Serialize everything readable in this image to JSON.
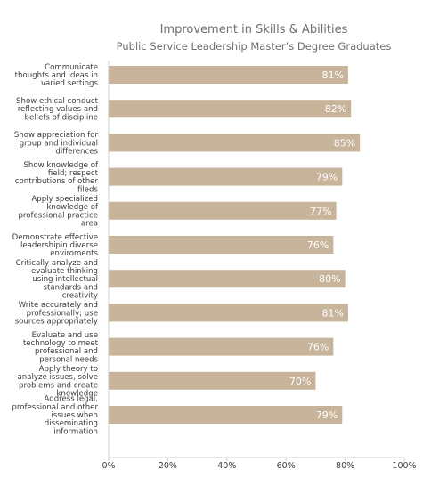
{
  "chart_data": {
    "type": "bar",
    "orientation": "horizontal",
    "title": "Improvement in Skills & Abilities",
    "subtitle": "Public Service Leadership Master’s Degree Graduates",
    "categories": [
      [
        "Communicate",
        "thoughts and ideas in",
        "varied settings"
      ],
      [
        "Show ethical conduct",
        "reflecting values and",
        "beliefs of discipline"
      ],
      [
        "Show appreciation for",
        "group and individual",
        "differences"
      ],
      [
        "Show knowledge of",
        "field; respect",
        "contributions of other",
        "fileds"
      ],
      [
        "Apply specialized",
        "knowledge of",
        "professional practice",
        "area"
      ],
      [
        "Demonstrate effective",
        "leadershipin diverse",
        "enviroments"
      ],
      [
        "Critically analyze and",
        "evaluate thinking",
        "using intellectual",
        "standards and",
        "creativity"
      ],
      [
        "Write accurately and",
        "professionally; use",
        "sources appropriately"
      ],
      [
        "Evaluate and use",
        "technology to meet",
        "professional and",
        "personal needs"
      ],
      [
        "Apply theory to",
        "analyze issues, solve",
        "problems and create",
        "knowledge"
      ],
      [
        "Address legal,",
        "professional and other",
        "issues when",
        "disseminating",
        "information"
      ]
    ],
    "values": [
      81,
      82,
      85,
      79,
      77,
      76,
      80,
      81,
      76,
      70,
      79
    ],
    "value_labels": [
      "81%",
      "82%",
      "85%",
      "79%",
      "77%",
      "76%",
      "80%",
      "81%",
      "76%",
      "70%",
      "79%"
    ],
    "xlim": [
      0,
      100
    ],
    "x_ticks": [
      "0%",
      "20%",
      "40%",
      "60%",
      "80%",
      "100%"
    ],
    "grid": false,
    "bar_color": "#c8b49a",
    "label_color": "#ffffff"
  }
}
